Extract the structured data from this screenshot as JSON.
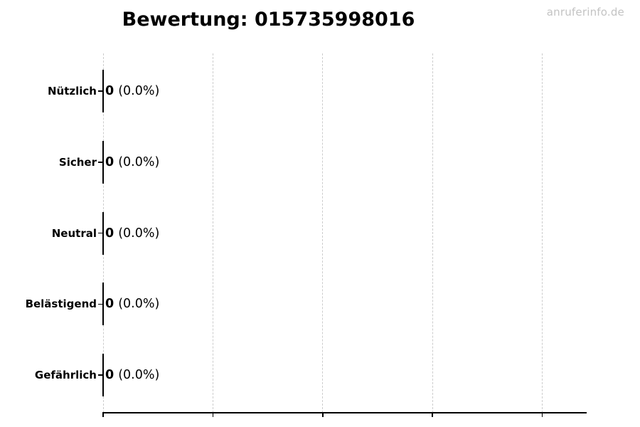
{
  "watermark": {
    "text": "anruferinfo.de",
    "color": "#c3c3c3"
  },
  "chart_data": {
    "type": "bar",
    "orientation": "horizontal",
    "title": "Bewertung: 015735998016",
    "categories": [
      "Nützlich",
      "Sicher",
      "Neutral",
      "Belästigend",
      "Gefährlich"
    ],
    "values": [
      0,
      0,
      0,
      0,
      0
    ],
    "value_labels": [
      "0",
      "0",
      "0",
      "0",
      "0"
    ],
    "percent_labels": [
      "(0.0%)",
      "(0.0%)",
      "(0.0%)",
      "(0.0%)",
      "(0.0%)"
    ],
    "xlabel": "",
    "ylabel": "",
    "x_tick_labels": [],
    "x_tick_count": 5,
    "grid": true,
    "gridline_style": "dashed",
    "gridline_color": "#cccccc",
    "bar_edge_color": "#000000",
    "text_color": "#000000",
    "background_color": "#ffffff",
    "legend": null
  }
}
